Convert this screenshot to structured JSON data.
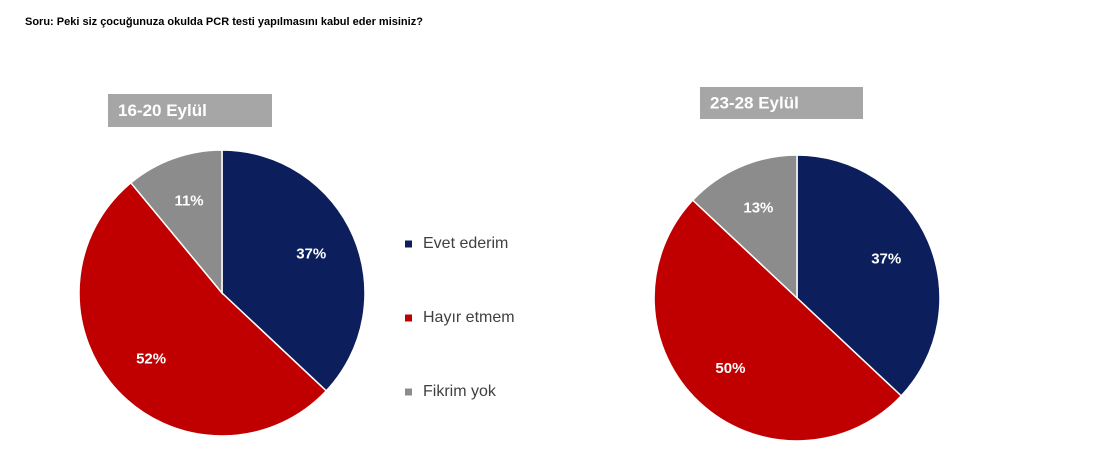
{
  "title": "Soru: Peki siz çocuğunuza okulda PCR testi yapılmasını kabul eder misiniz?",
  "chart_data": [
    {
      "type": "pie",
      "title": "16-20 Eylül",
      "categories": [
        "Evet ederim",
        "Hayır etmem",
        "Fikrim yok"
      ],
      "values": [
        37,
        52,
        11
      ],
      "value_labels": [
        "37%",
        "52%",
        "11%"
      ],
      "colors": [
        "#0c1f5c",
        "#c00000",
        "#8c8c8c"
      ]
    },
    {
      "type": "pie",
      "title": "23-28 Eylül",
      "values": [
        37,
        50,
        13
      ],
      "value_labels": [
        "37%",
        "50%",
        "13%"
      ],
      "colors": [
        "#0c1f5c",
        "#c00000",
        "#8c8c8c"
      ]
    }
  ]
}
